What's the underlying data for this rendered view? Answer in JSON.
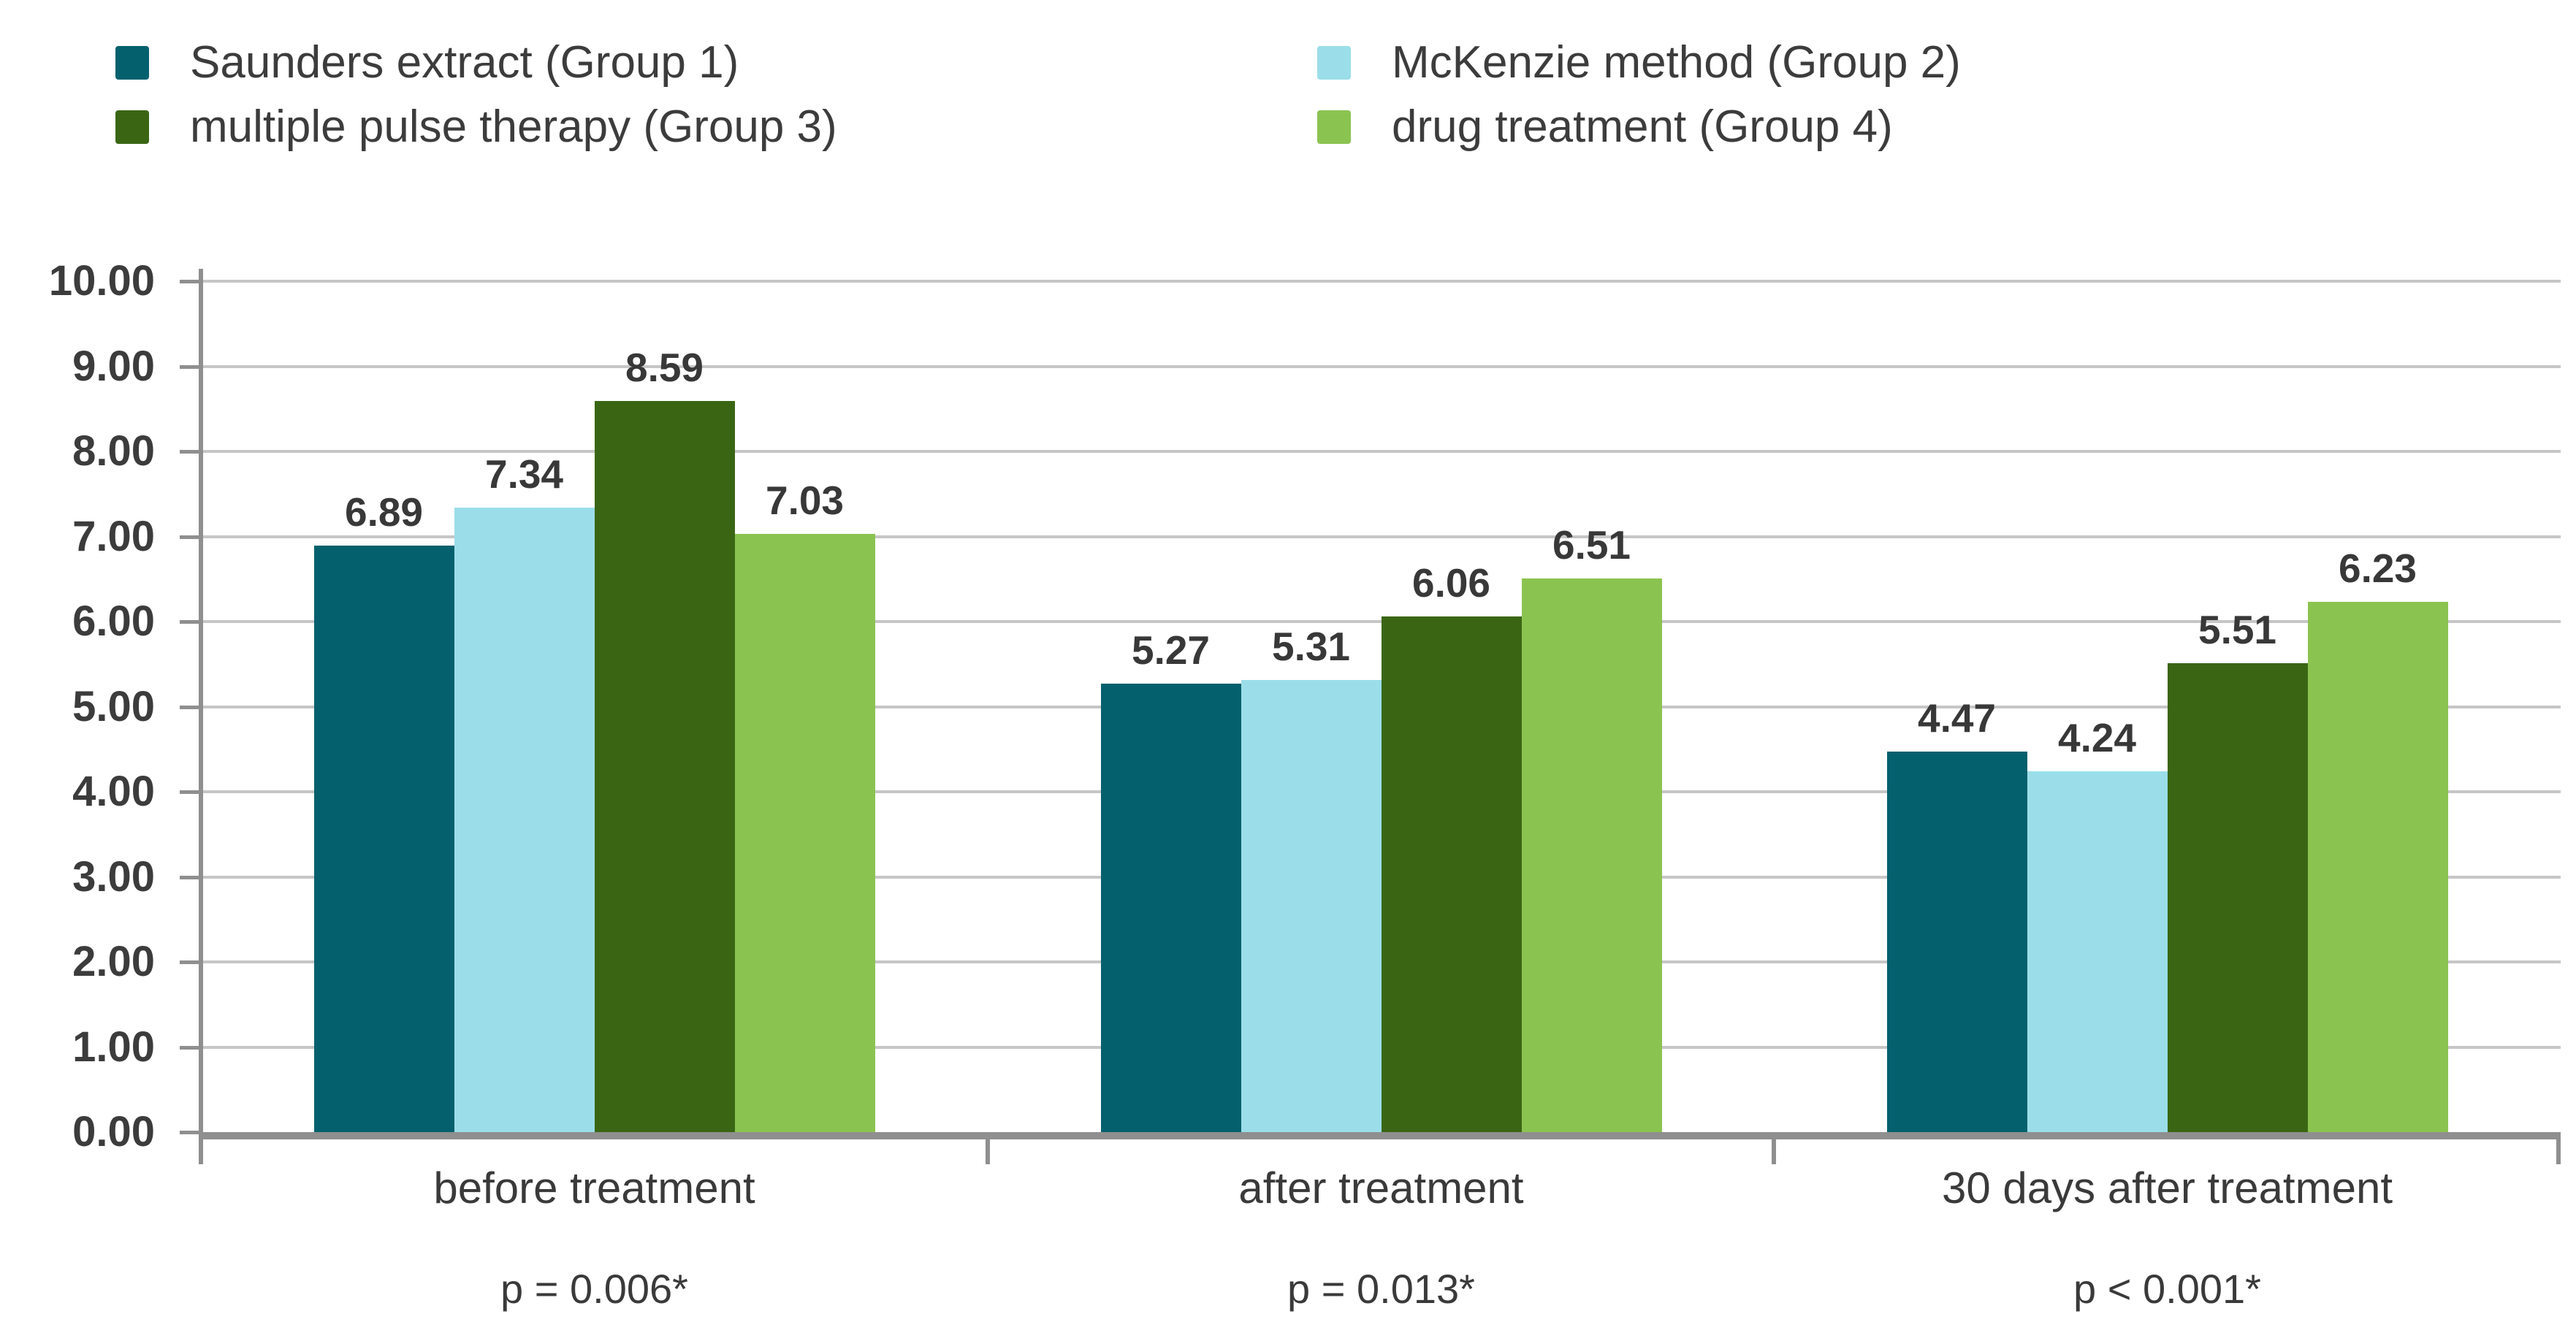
{
  "chart_data": {
    "type": "bar",
    "title": "",
    "categories": [
      "before treatment",
      "after treatment",
      "30 days after treatment"
    ],
    "p_values": [
      "p = 0.006*",
      "p = 0.013*",
      "p < 0.001*"
    ],
    "series": [
      {
        "name": "Saunders extract (Group 1)",
        "color": "#05606D",
        "values": [
          6.89,
          5.27,
          4.47
        ]
      },
      {
        "name": "McKenzie method (Group 2)",
        "color": "#9BDEE9",
        "values": [
          7.34,
          5.31,
          4.24
        ]
      },
      {
        "name": "multiple pulse therapy (Group 3)",
        "color": "#3A6614",
        "values": [
          8.59,
          6.06,
          5.51
        ]
      },
      {
        "name": "drug treatment (Group 4)",
        "color": "#8BC351",
        "values": [
          7.03,
          6.51,
          6.23
        ]
      }
    ],
    "ylim": [
      0,
      10
    ],
    "ytick_step": 1,
    "yticks": [
      "0.00",
      "1.00",
      "2.00",
      "3.00",
      "4.00",
      "5.00",
      "6.00",
      "7.00",
      "8.00",
      "9.00",
      "10.00"
    ],
    "value_label_decimals": 2,
    "grid": true,
    "legend_position": "top",
    "colors": {
      "gridline": "#C6C6C6",
      "axis": "#8F8F8F",
      "text": "#3C3C3C"
    }
  }
}
